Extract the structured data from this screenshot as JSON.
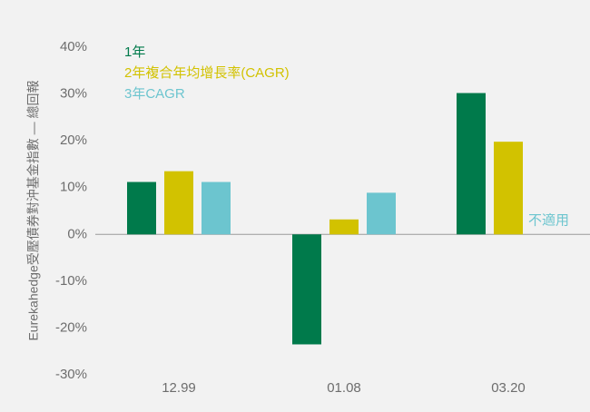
{
  "chart_data": {
    "type": "bar",
    "y_label": "Eurekahedge受壓債券對沖基金指數 — 總回報",
    "categories": [
      "12.99",
      "01.08",
      "03.20"
    ],
    "series": [
      {
        "name": "1年",
        "color": "#007a4b",
        "values": [
          11.2,
          -23.5,
          30.2
        ]
      },
      {
        "name": "2年複合年均增長率(CAGR)",
        "color": "#d2c200",
        "values": [
          13.5,
          3.2,
          19.8
        ]
      },
      {
        "name": "3年CAGR",
        "color": "#6cc5cf",
        "values": [
          11.2,
          8.9,
          null
        ]
      }
    ],
    "annotation": "不適用",
    "ylim": [
      -30,
      40
    ],
    "yticks": [
      {
        "value": -30,
        "label": "-30%"
      },
      {
        "value": -20,
        "label": "-20%"
      },
      {
        "value": -10,
        "label": "-10%"
      },
      {
        "value": 0,
        "label": "0%"
      },
      {
        "value": 10,
        "label": "10%"
      },
      {
        "value": 20,
        "label": "20%"
      },
      {
        "value": 30,
        "label": "30%"
      },
      {
        "value": 40,
        "label": "40%"
      }
    ],
    "legend": "upper left"
  }
}
